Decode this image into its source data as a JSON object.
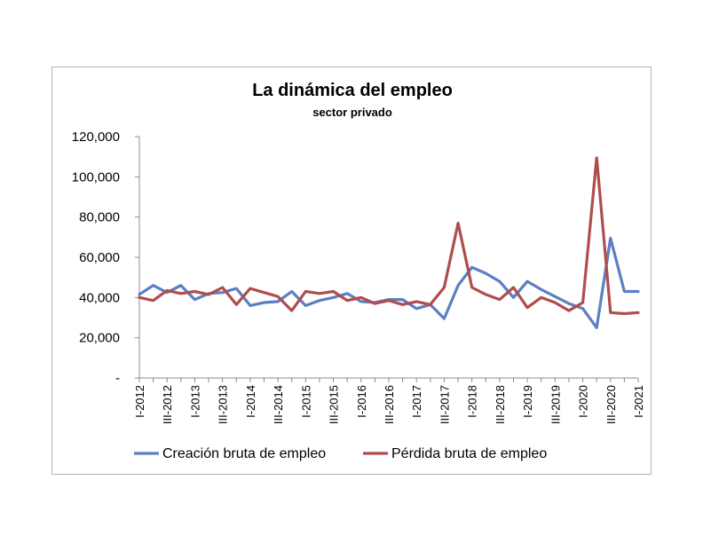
{
  "chart_data": {
    "type": "line",
    "title": "La dinámica del empleo",
    "subtitle": "sector privado",
    "ylim": [
      0,
      120000
    ],
    "y_ticks": [
      {
        "value": 0,
        "label": "-"
      },
      {
        "value": 20000,
        "label": "20,000"
      },
      {
        "value": 40000,
        "label": "40,000"
      },
      {
        "value": 60000,
        "label": "60,000"
      },
      {
        "value": 80000,
        "label": "80,000"
      },
      {
        "value": 100000,
        "label": "100,000"
      },
      {
        "value": 120000,
        "label": "120,000"
      }
    ],
    "categories": [
      "I-2012",
      "II-2012",
      "III-2012",
      "IV-2012",
      "I-2013",
      "II-2013",
      "III-2013",
      "IV-2013",
      "I-2014",
      "II-2014",
      "III-2014",
      "IV-2014",
      "I-2015",
      "II-2015",
      "III-2015",
      "IV-2015",
      "I-2016",
      "II-2016",
      "III-2016",
      "IV-2016",
      "I-2017",
      "II-2017",
      "III-2017",
      "IV-2017",
      "I-2018",
      "II-2018",
      "III-2018",
      "IV-2018",
      "I-2019",
      "II-2019",
      "III-2019",
      "IV-2019",
      "I-2020",
      "II-2020",
      "III-2020",
      "IV-2020",
      "I-2021"
    ],
    "x_tick_labels": [
      "I-2012",
      "III-2012",
      "I-2013",
      "III-2013",
      "I-2014",
      "III-2014",
      "I-2015",
      "III-2015",
      "I-2016",
      "III-2016",
      "I-2017",
      "III-2017",
      "I-2018",
      "III-2018",
      "I-2019",
      "III-2019",
      "I-2020",
      "III-2020",
      "I-2021"
    ],
    "grid": false,
    "legend_position": "bottom",
    "series": [
      {
        "name": "Creación bruta de empleo",
        "color": "#5b7fc2",
        "values": [
          41500,
          46000,
          42500,
          46000,
          39000,
          42000,
          42500,
          44500,
          36000,
          37500,
          38000,
          43000,
          36000,
          38500,
          40000,
          42000,
          38000,
          37500,
          39000,
          39000,
          34500,
          36500,
          29500,
          46000,
          55000,
          52000,
          48000,
          40000,
          48000,
          44000,
          40500,
          37000,
          34500,
          25000,
          69500,
          43000,
          43000
        ]
      },
      {
        "name": "Pérdida bruta de empleo",
        "color": "#b04d4d",
        "values": [
          40000,
          38500,
          43500,
          42000,
          43000,
          41500,
          45000,
          36500,
          44500,
          42500,
          40500,
          33500,
          43000,
          42000,
          43000,
          38500,
          40000,
          37000,
          38500,
          36500,
          38000,
          36500,
          45000,
          77000,
          45000,
          41500,
          39000,
          45000,
          35000,
          40000,
          37500,
          33500,
          37500,
          109500,
          32500,
          32000,
          32500
        ]
      }
    ]
  }
}
